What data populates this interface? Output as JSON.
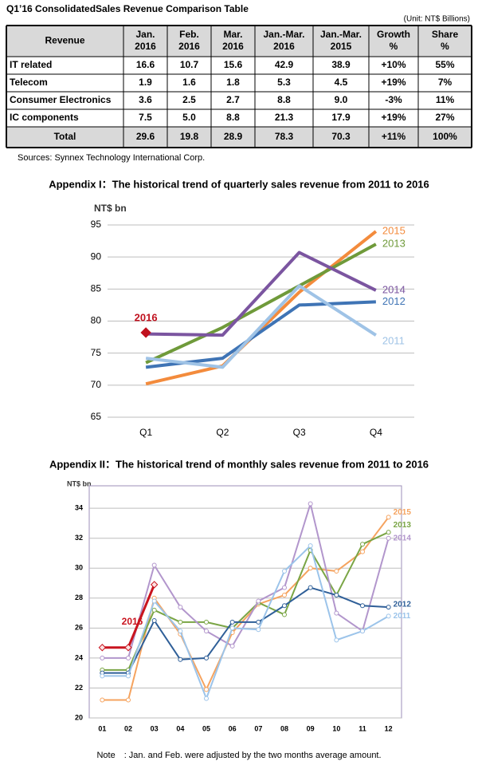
{
  "title": "Q1’16 ConsolidatedSales Revenue Comparison Table",
  "unit": "(Unit: NT$ Billions)",
  "table": {
    "header": [
      [
        "Revenue"
      ],
      [
        "Jan.",
        "2016"
      ],
      [
        "Feb.",
        "2016"
      ],
      [
        "Mar.",
        "2016"
      ],
      [
        "Jan.-Mar.",
        "2016"
      ],
      [
        "Jan.-Mar.",
        "2015"
      ],
      [
        "Growth",
        "%"
      ],
      [
        "Share",
        "%"
      ]
    ],
    "rows": [
      [
        "IT related",
        "16.6",
        "10.7",
        "15.6",
        "42.9",
        "38.9",
        "+10%",
        "55%"
      ],
      [
        "Telecom",
        "1.9",
        "1.6",
        "1.8",
        "5.3",
        "4.5",
        "+19%",
        "7%"
      ],
      [
        "Consumer Electronics",
        "3.6",
        "2.5",
        "2.7",
        "8.8",
        "9.0",
        "-3%",
        "11%"
      ],
      [
        "IC components",
        "7.5",
        "5.0",
        "8.8",
        "21.3",
        "17.9",
        "+19%",
        "27%"
      ],
      [
        "Total",
        "29.6",
        "19.8",
        "28.9",
        "78.3",
        "70.3",
        "+11%",
        "100%"
      ]
    ]
  },
  "source": "Sources: Synnex Technology International Corp.",
  "chart_data": [
    {
      "type": "line",
      "title": "Appendix I：The historical trend of quarterly sales revenue from 2011 to 2016",
      "y_label": "NT$ bn",
      "categories": [
        "Q1",
        "Q2",
        "Q3",
        "Q4"
      ],
      "ylim": [
        65,
        95
      ],
      "yticks": [
        65,
        70,
        75,
        80,
        85,
        90,
        95
      ],
      "grid": true,
      "markers": false,
      "series": [
        {
          "name": "2015",
          "color": "#f38b3c",
          "values": [
            70.2,
            73.0,
            84.5,
            94.0
          ]
        },
        {
          "name": "2013",
          "color": "#6f9a3a",
          "values": [
            73.5,
            79.0,
            85.5,
            92.0
          ]
        },
        {
          "name": "2014",
          "color": "#7b55a0",
          "values": [
            78.0,
            77.8,
            90.7,
            84.8
          ]
        },
        {
          "name": "2012",
          "color": "#3f74b5",
          "values": [
            72.8,
            74.2,
            82.5,
            83.0
          ]
        },
        {
          "name": "2011",
          "color": "#9fc3e6",
          "values": [
            74.2,
            72.8,
            85.5,
            77.8
          ]
        },
        {
          "name": "2016",
          "color": "#c0111e",
          "marker": "diamond",
          "values": [
            78.2,
            null,
            null,
            null
          ]
        }
      ]
    },
    {
      "type": "line",
      "title": "Appendix II：The historical trend of monthly sales revenue from 2011 to 2016",
      "y_label": "NT$ bn",
      "categories": [
        "01",
        "02",
        "03",
        "04",
        "05",
        "06",
        "07",
        "08",
        "09",
        "10",
        "11",
        "12"
      ],
      "ylim": [
        20,
        35.5
      ],
      "yticks": [
        20,
        22,
        24,
        26,
        28,
        30,
        32,
        34
      ],
      "grid": true,
      "markers": true,
      "series": [
        {
          "name": "2015",
          "color": "#f5a35f",
          "values": [
            21.2,
            21.2,
            28.0,
            25.6,
            21.9,
            25.7,
            27.6,
            28.2,
            30.0,
            29.8,
            31.1,
            33.4
          ]
        },
        {
          "name": "2013",
          "color": "#7aa545",
          "values": [
            23.2,
            23.2,
            27.2,
            26.4,
            26.4,
            26.0,
            27.7,
            26.9,
            31.2,
            28.2,
            31.6,
            32.4
          ]
        },
        {
          "name": "2014",
          "color": "#b296cc",
          "values": [
            24.0,
            24.0,
            30.2,
            27.4,
            25.8,
            24.8,
            27.8,
            28.7,
            34.3,
            27.0,
            25.8,
            32.0
          ]
        },
        {
          "name": "2012",
          "color": "#2f5f98",
          "values": [
            23.0,
            23.0,
            26.5,
            23.9,
            24.0,
            26.4,
            26.4,
            27.5,
            28.7,
            28.2,
            27.5,
            27.4
          ]
        },
        {
          "name": "2011",
          "color": "#9cc4ea",
          "values": [
            22.8,
            22.8,
            27.8,
            25.8,
            21.3,
            26.0,
            25.9,
            29.8,
            31.5,
            25.2,
            25.8,
            26.8
          ]
        },
        {
          "name": "2016",
          "color": "#c9141f",
          "marker": "diamond",
          "values": [
            24.7,
            24.7,
            28.9,
            null,
            null,
            null,
            null,
            null,
            null,
            null,
            null,
            null
          ]
        }
      ]
    }
  ],
  "note": "Note　: Jan. and Feb. were adjusted by the two months average amount."
}
